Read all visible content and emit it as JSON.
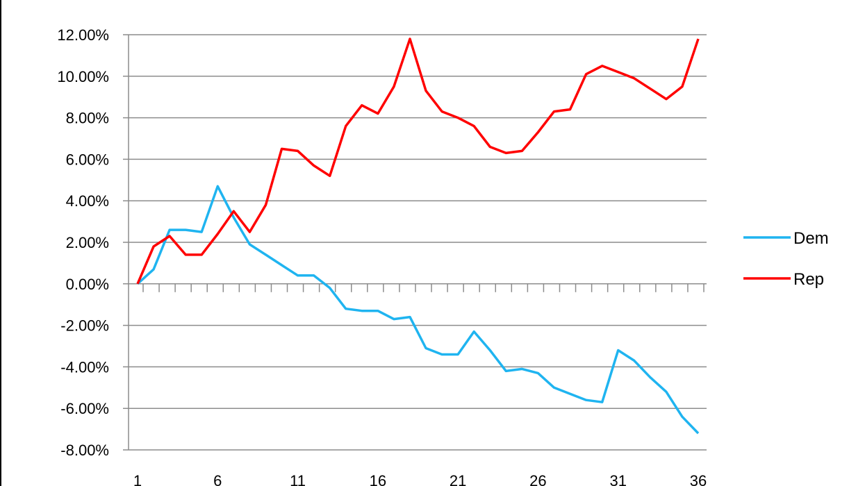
{
  "chart_data": {
    "type": "line",
    "x": [
      1,
      2,
      3,
      4,
      5,
      6,
      7,
      8,
      9,
      10,
      11,
      12,
      13,
      14,
      15,
      16,
      17,
      18,
      19,
      20,
      21,
      22,
      23,
      24,
      25,
      26,
      27,
      28,
      29,
      30,
      31,
      32,
      33,
      34,
      35,
      36
    ],
    "x_tick_labels": [
      "1",
      "6",
      "11",
      "16",
      "21",
      "26",
      "31",
      "36"
    ],
    "y_tick_labels": [
      "12.00%",
      "10.00%",
      "8.00%",
      "6.00%",
      "4.00%",
      "2.00%",
      "0.00%",
      "-2.00%",
      "-4.00%",
      "-6.00%",
      "-8.00%"
    ],
    "ylim": [
      -8,
      12
    ],
    "y_unit": "percent",
    "grid": "horizontal",
    "legend": "right",
    "series": [
      {
        "name": "Dem",
        "color": "#1fb4f0",
        "values": [
          0.0,
          0.7,
          2.6,
          2.6,
          2.5,
          4.7,
          3.2,
          1.9,
          1.4,
          0.9,
          0.4,
          0.4,
          -0.2,
          -1.2,
          -1.3,
          -1.3,
          -1.7,
          -1.6,
          -3.1,
          -3.4,
          -3.4,
          -2.3,
          -3.2,
          -4.2,
          -4.1,
          -4.3,
          -5.0,
          -5.3,
          -5.6,
          -5.7,
          -3.2,
          -3.7,
          -4.5,
          -5.2,
          -6.4,
          -7.2
        ]
      },
      {
        "name": "Rep",
        "color": "#ff0000",
        "values": [
          0.0,
          1.8,
          2.3,
          1.4,
          1.4,
          2.4,
          3.5,
          2.5,
          3.8,
          6.5,
          6.4,
          5.7,
          5.2,
          7.6,
          8.6,
          8.2,
          9.5,
          11.8,
          9.3,
          8.3,
          8.0,
          7.6,
          6.6,
          6.3,
          6.4,
          7.3,
          8.3,
          8.4,
          10.1,
          10.5,
          10.2,
          9.9,
          9.4,
          8.9,
          9.5,
          11.8
        ]
      }
    ]
  }
}
